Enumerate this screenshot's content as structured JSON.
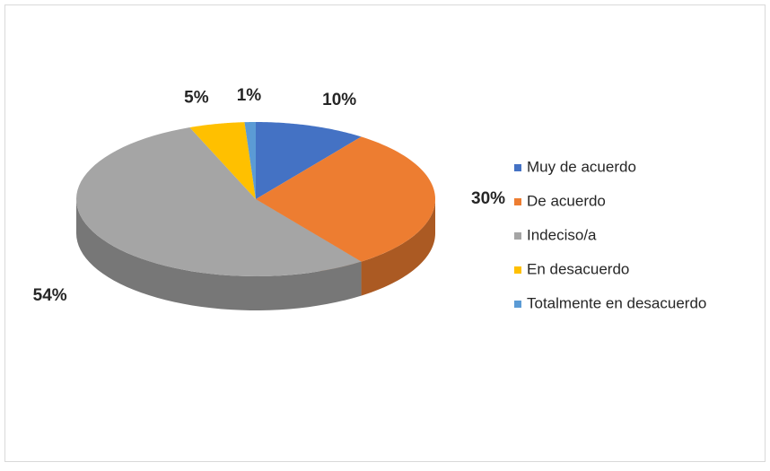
{
  "chart_data": {
    "type": "pie",
    "categories": [
      "Muy de acuerdo",
      "De acuerdo",
      "Indeciso/a",
      "En desacuerdo",
      "Totalmente en desacuerdo"
    ],
    "values": [
      10,
      30,
      54,
      5,
      1
    ],
    "value_labels": [
      "10%",
      "30%",
      "54%",
      "5%",
      "1%"
    ],
    "colors": [
      "#4472c4",
      "#ed7d31",
      "#a5a5a5",
      "#ffc000",
      "#5b9bd5"
    ],
    "legend": "right"
  }
}
